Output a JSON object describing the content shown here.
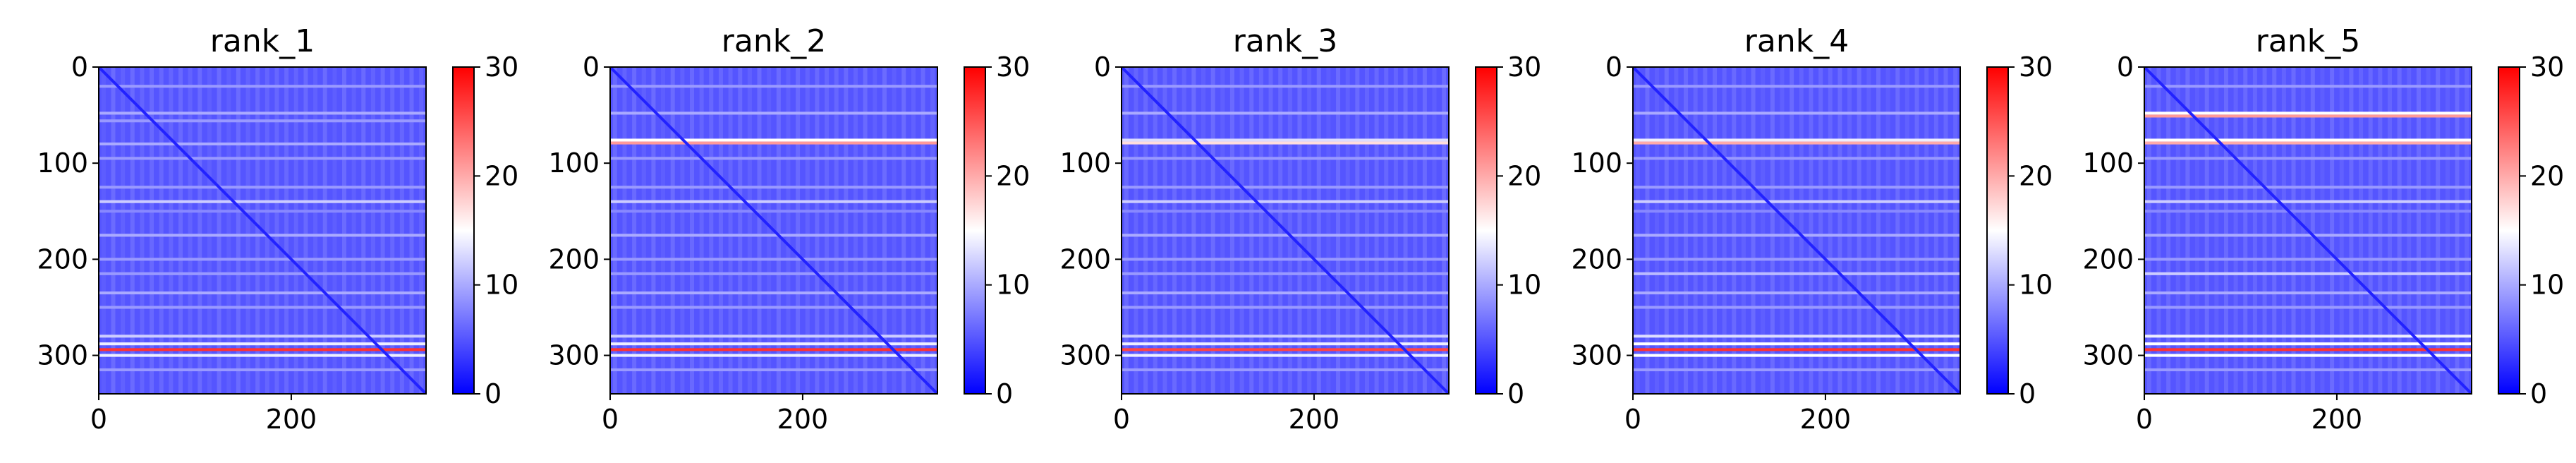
{
  "chart_data": [
    {
      "type": "heatmap",
      "title": "rank_1",
      "shape": [
        340,
        340
      ],
      "xlim": [
        0,
        340
      ],
      "ylim": [
        340,
        0
      ],
      "x_ticks": [
        0,
        200
      ],
      "y_ticks": [
        0,
        100,
        200,
        300
      ],
      "colorbar": {
        "min": 0,
        "max": 30,
        "ticks": [
          0,
          10,
          20,
          30
        ],
        "colormap": [
          "#0000ff",
          "#ffffff",
          "#ff0000"
        ]
      },
      "background_value": 5,
      "diagonal_value": 2,
      "bands": [
        {
          "y": 20,
          "value": 9
        },
        {
          "y": 48,
          "value": 10
        },
        {
          "y": 56,
          "value": 9
        },
        {
          "y": 80,
          "value": 10
        },
        {
          "y": 95,
          "value": 9
        },
        {
          "y": 125,
          "value": 9
        },
        {
          "y": 140,
          "value": 12
        },
        {
          "y": 150,
          "value": 8
        },
        {
          "y": 175,
          "value": 10
        },
        {
          "y": 200,
          "value": 9
        },
        {
          "y": 215,
          "value": 9
        },
        {
          "y": 235,
          "value": 10
        },
        {
          "y": 250,
          "value": 9
        },
        {
          "y": 280,
          "value": 12
        },
        {
          "y": 288,
          "value": 14
        },
        {
          "y": 294,
          "value": 27
        },
        {
          "y": 300,
          "value": 14
        },
        {
          "y": 315,
          "value": 9
        }
      ]
    },
    {
      "type": "heatmap",
      "title": "rank_2",
      "shape": [
        340,
        340
      ],
      "xlim": [
        0,
        340
      ],
      "ylim": [
        340,
        0
      ],
      "x_ticks": [
        0,
        200
      ],
      "y_ticks": [
        0,
        100,
        200,
        300
      ],
      "colorbar": {
        "min": 0,
        "max": 30,
        "ticks": [
          0,
          10,
          20,
          30
        ],
        "colormap": [
          "#0000ff",
          "#ffffff",
          "#ff0000"
        ]
      },
      "background_value": 5,
      "diagonal_value": 2,
      "bands": [
        {
          "y": 20,
          "value": 9
        },
        {
          "y": 48,
          "value": 10
        },
        {
          "y": 76,
          "value": 15
        },
        {
          "y": 79,
          "value": 21
        },
        {
          "y": 95,
          "value": 9
        },
        {
          "y": 125,
          "value": 9
        },
        {
          "y": 140,
          "value": 12
        },
        {
          "y": 150,
          "value": 8
        },
        {
          "y": 175,
          "value": 10
        },
        {
          "y": 200,
          "value": 9
        },
        {
          "y": 215,
          "value": 9
        },
        {
          "y": 235,
          "value": 10
        },
        {
          "y": 250,
          "value": 9
        },
        {
          "y": 280,
          "value": 12
        },
        {
          "y": 288,
          "value": 14
        },
        {
          "y": 294,
          "value": 27
        },
        {
          "y": 300,
          "value": 14
        },
        {
          "y": 315,
          "value": 9
        }
      ]
    },
    {
      "type": "heatmap",
      "title": "rank_3",
      "shape": [
        340,
        340
      ],
      "xlim": [
        0,
        340
      ],
      "ylim": [
        340,
        0
      ],
      "x_ticks": [
        0,
        200
      ],
      "y_ticks": [
        0,
        100,
        200,
        300
      ],
      "colorbar": {
        "min": 0,
        "max": 30,
        "ticks": [
          0,
          10,
          20,
          30
        ],
        "colormap": [
          "#0000ff",
          "#ffffff",
          "#ff0000"
        ]
      },
      "background_value": 5,
      "diagonal_value": 2,
      "bands": [
        {
          "y": 20,
          "value": 9
        },
        {
          "y": 48,
          "value": 10
        },
        {
          "y": 76,
          "value": 13
        },
        {
          "y": 79,
          "value": 17
        },
        {
          "y": 95,
          "value": 9
        },
        {
          "y": 125,
          "value": 9
        },
        {
          "y": 140,
          "value": 12
        },
        {
          "y": 150,
          "value": 8
        },
        {
          "y": 175,
          "value": 10
        },
        {
          "y": 200,
          "value": 9
        },
        {
          "y": 215,
          "value": 9
        },
        {
          "y": 235,
          "value": 10
        },
        {
          "y": 250,
          "value": 9
        },
        {
          "y": 280,
          "value": 12
        },
        {
          "y": 288,
          "value": 14
        },
        {
          "y": 294,
          "value": 26
        },
        {
          "y": 300,
          "value": 14
        },
        {
          "y": 315,
          "value": 9
        }
      ]
    },
    {
      "type": "heatmap",
      "title": "rank_4",
      "shape": [
        340,
        340
      ],
      "xlim": [
        0,
        340
      ],
      "ylim": [
        340,
        0
      ],
      "x_ticks": [
        0,
        200
      ],
      "y_ticks": [
        0,
        100,
        200,
        300
      ],
      "colorbar": {
        "min": 0,
        "max": 30,
        "ticks": [
          0,
          10,
          20,
          30
        ],
        "colormap": [
          "#0000ff",
          "#ffffff",
          "#ff0000"
        ]
      },
      "background_value": 5,
      "diagonal_value": 2,
      "bands": [
        {
          "y": 20,
          "value": 9
        },
        {
          "y": 48,
          "value": 10
        },
        {
          "y": 76,
          "value": 14
        },
        {
          "y": 79,
          "value": 20
        },
        {
          "y": 95,
          "value": 9
        },
        {
          "y": 125,
          "value": 9
        },
        {
          "y": 140,
          "value": 12
        },
        {
          "y": 150,
          "value": 8
        },
        {
          "y": 175,
          "value": 10
        },
        {
          "y": 200,
          "value": 9
        },
        {
          "y": 215,
          "value": 11
        },
        {
          "y": 235,
          "value": 10
        },
        {
          "y": 250,
          "value": 9
        },
        {
          "y": 280,
          "value": 13
        },
        {
          "y": 288,
          "value": 15
        },
        {
          "y": 294,
          "value": 27
        },
        {
          "y": 300,
          "value": 15
        },
        {
          "y": 315,
          "value": 9
        }
      ]
    },
    {
      "type": "heatmap",
      "title": "rank_5",
      "shape": [
        340,
        340
      ],
      "xlim": [
        0,
        340
      ],
      "ylim": [
        340,
        0
      ],
      "x_ticks": [
        0,
        200
      ],
      "y_ticks": [
        0,
        100,
        200,
        300
      ],
      "colorbar": {
        "min": 0,
        "max": 30,
        "ticks": [
          0,
          10,
          20,
          30
        ],
        "colormap": [
          "#0000ff",
          "#ffffff",
          "#ff0000"
        ]
      },
      "background_value": 5,
      "diagonal_value": 2,
      "bands": [
        {
          "y": 20,
          "value": 9
        },
        {
          "y": 48,
          "value": 15
        },
        {
          "y": 51,
          "value": 21
        },
        {
          "y": 76,
          "value": 15
        },
        {
          "y": 79,
          "value": 20
        },
        {
          "y": 95,
          "value": 9
        },
        {
          "y": 125,
          "value": 9
        },
        {
          "y": 140,
          "value": 12
        },
        {
          "y": 150,
          "value": 8
        },
        {
          "y": 175,
          "value": 10
        },
        {
          "y": 200,
          "value": 9
        },
        {
          "y": 215,
          "value": 12
        },
        {
          "y": 235,
          "value": 10
        },
        {
          "y": 250,
          "value": 9
        },
        {
          "y": 280,
          "value": 14
        },
        {
          "y": 288,
          "value": 15
        },
        {
          "y": 294,
          "value": 27
        },
        {
          "y": 300,
          "value": 15
        },
        {
          "y": 315,
          "value": 9
        }
      ]
    }
  ]
}
